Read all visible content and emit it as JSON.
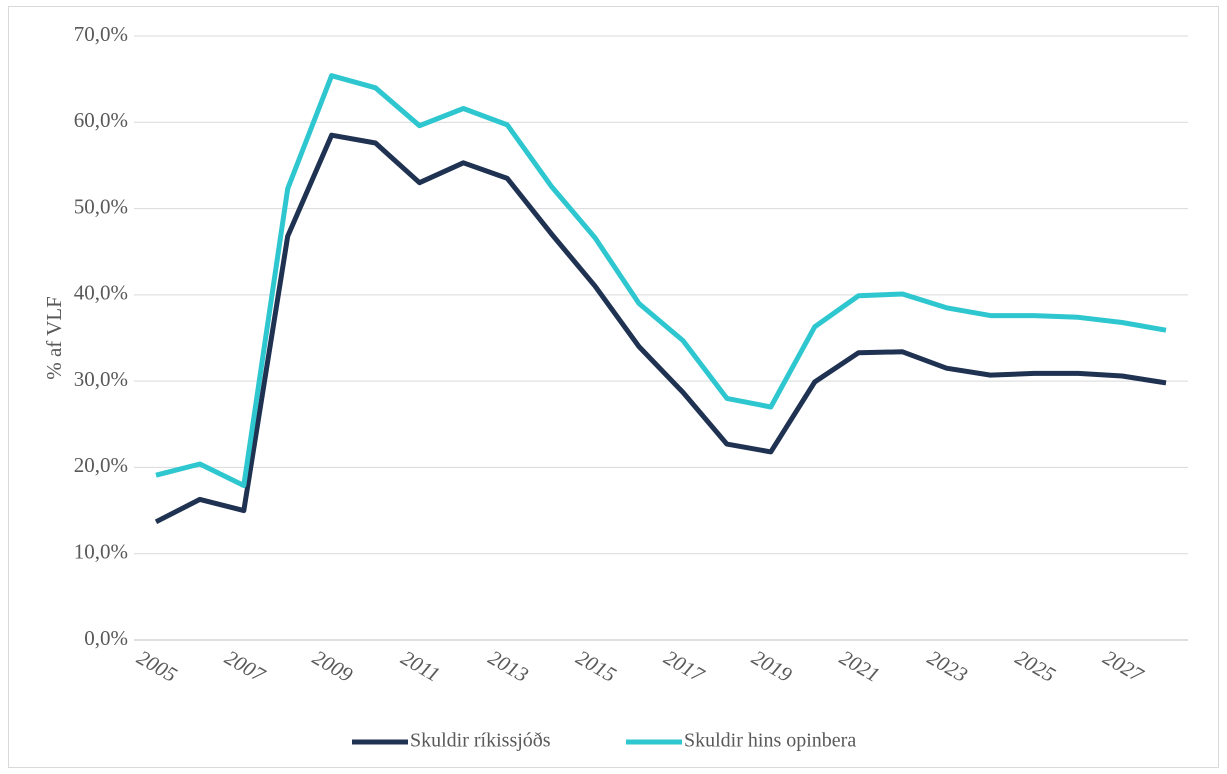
{
  "chart_data": {
    "type": "line",
    "title": "",
    "xlabel": "",
    "ylabel": "% af VLF",
    "ylim": [
      0,
      70
    ],
    "yticks": [
      "0,0%",
      "10,0%",
      "20,0%",
      "30,0%",
      "40,0%",
      "50,0%",
      "60,0%",
      "70,0%"
    ],
    "xticks": [
      "2005",
      "2007",
      "2009",
      "2011",
      "2013",
      "2015",
      "2017",
      "2019",
      "2021",
      "2023",
      "2025",
      "2027"
    ],
    "x": [
      2005,
      2006,
      2007,
      2008,
      2009,
      2010,
      2011,
      2012,
      2013,
      2014,
      2015,
      2016,
      2017,
      2018,
      2019,
      2020,
      2021,
      2022,
      2023,
      2024,
      2025,
      2026,
      2027,
      2028
    ],
    "grid": true,
    "legend_position": "bottom",
    "series": [
      {
        "name": "Skuldir ríkissjóðs",
        "color": "#1f3251",
        "values": [
          13.7,
          16.3,
          15.0,
          46.8,
          58.5,
          57.6,
          53.0,
          55.3,
          53.5,
          47.1,
          41.0,
          34.0,
          28.7,
          22.7,
          21.8,
          29.9,
          33.3,
          33.4,
          31.5,
          30.7,
          30.9,
          30.9,
          30.6,
          29.8
        ]
      },
      {
        "name": "Skuldir hins opinbera",
        "color": "#2ec7cf",
        "values": [
          19.1,
          20.4,
          17.9,
          52.3,
          65.4,
          64.0,
          59.6,
          61.6,
          59.7,
          52.6,
          46.6,
          39.0,
          34.7,
          28.0,
          27.0,
          36.3,
          39.9,
          40.1,
          38.5,
          37.6,
          37.6,
          37.4,
          36.8,
          35.9
        ]
      }
    ]
  }
}
